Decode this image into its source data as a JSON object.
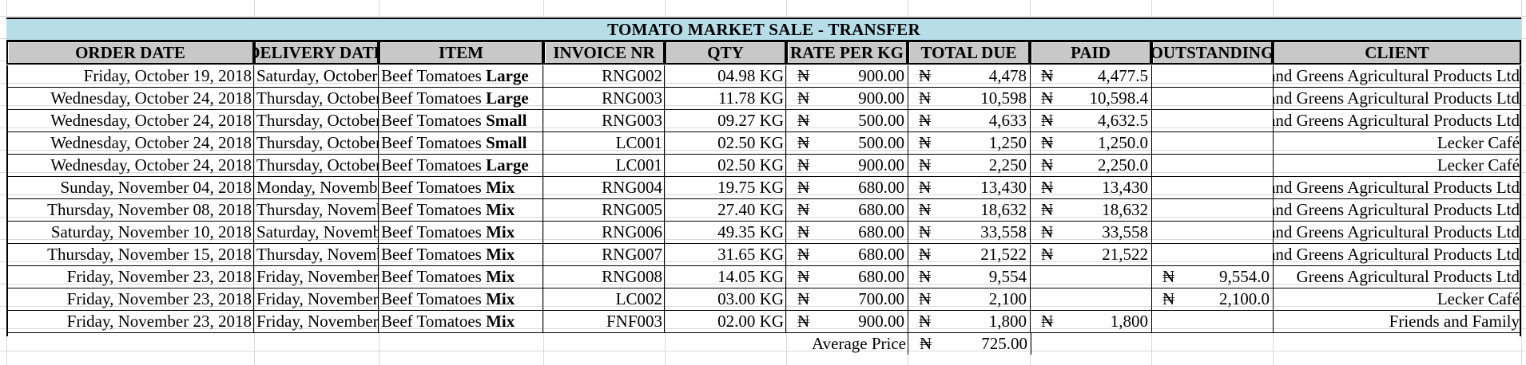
{
  "sheet": {
    "title": "TOMATO MARKET SALE - TRANSFER",
    "currency_symbol": "₦",
    "header_color": "#c8c8c8",
    "title_band_color": "#b7dde8",
    "columns": [
      "ORDER DATE",
      "DELIVERY DATE",
      "ITEM",
      "INVOICE NR",
      "QTY",
      "RATE PER KG",
      "TOTAL DUE",
      "PAID",
      "OUTSTANDING",
      "CLIENT"
    ],
    "rows": [
      {
        "order_date": "Friday, October 19, 2018",
        "delivery_date": "Saturday, October",
        "item": "Beef Tomatoes",
        "grade": "Large",
        "invoice": "RNG002",
        "qty": "04.98 KG",
        "rate": "900.00",
        "total": "4,478",
        "paid": "4,477.5",
        "outstanding": "",
        "client": "Reds and Greens Agricultural Products Ltd"
      },
      {
        "order_date": "Wednesday, October 24, 2018",
        "delivery_date": "Thursday, October",
        "item": "Beef Tomatoes",
        "grade": "Large",
        "invoice": "RNG003",
        "qty": "11.78 KG",
        "rate": "900.00",
        "total": "10,598",
        "paid": "10,598.4",
        "outstanding": "",
        "client": "Reds and Greens Agricultural Products Ltd"
      },
      {
        "order_date": "Wednesday, October 24, 2018",
        "delivery_date": "Thursday, October",
        "item": "Beef Tomatoes",
        "grade": "Small",
        "invoice": "RNG003",
        "qty": "09.27 KG",
        "rate": "500.00",
        "total": "4,633",
        "paid": "4,632.5",
        "outstanding": "",
        "client": "Reds and Greens Agricultural Products Ltd"
      },
      {
        "order_date": "Wednesday, October 24, 2018",
        "delivery_date": "Thursday, October",
        "item": "Beef Tomatoes",
        "grade": "Small",
        "invoice": "LC001",
        "qty": "02.50 KG",
        "rate": "500.00",
        "total": "1,250",
        "paid": "1,250.0",
        "outstanding": "",
        "client": "Lecker Café"
      },
      {
        "order_date": "Wednesday, October 24, 2018",
        "delivery_date": "Thursday, October",
        "item": "Beef Tomatoes",
        "grade": "Large",
        "invoice": "LC001",
        "qty": "02.50 KG",
        "rate": "900.00",
        "total": "2,250",
        "paid": "2,250.0",
        "outstanding": "",
        "client": "Lecker Café"
      },
      {
        "order_date": "Sunday, November 04, 2018",
        "delivery_date": "Monday, November",
        "item": "Beef Tomatoes",
        "grade": "Mix",
        "invoice": "RNG004",
        "qty": "19.75 KG",
        "rate": "680.00",
        "total": "13,430",
        "paid": "13,430",
        "outstanding": "",
        "client": "Reds and Greens Agricultural Products Ltd"
      },
      {
        "order_date": "Thursday, November 08, 2018",
        "delivery_date": "Thursday, November",
        "item": "Beef Tomatoes",
        "grade": "Mix",
        "invoice": "RNG005",
        "qty": "27.40 KG",
        "rate": "680.00",
        "total": "18,632",
        "paid": "18,632",
        "outstanding": "",
        "client": "Reds and Greens Agricultural Products Ltd"
      },
      {
        "order_date": "Saturday, November 10, 2018",
        "delivery_date": "Saturday, November",
        "item": "Beef Tomatoes",
        "grade": "Mix",
        "invoice": "RNG006",
        "qty": "49.35 KG",
        "rate": "680.00",
        "total": "33,558",
        "paid": "33,558",
        "outstanding": "",
        "client": "Reds and Greens Agricultural Products Ltd"
      },
      {
        "order_date": "Thursday, November 15, 2018",
        "delivery_date": "Thursday, November",
        "item": "Beef Tomatoes",
        "grade": "Mix",
        "invoice": "RNG007",
        "qty": "31.65 KG",
        "rate": "680.00",
        "total": "21,522",
        "paid": "21,522",
        "outstanding": "",
        "client": "Reds and Greens Agricultural Products Ltd"
      },
      {
        "order_date": "Friday, November 23, 2018",
        "delivery_date": "Friday, November",
        "item": "Beef Tomatoes",
        "grade": "Mix",
        "invoice": "RNG008",
        "qty": "14.05 KG",
        "rate": "680.00",
        "total": "9,554",
        "paid": "",
        "outstanding": "9,554.0",
        "client": "Greens Agricultural Products Ltd"
      },
      {
        "order_date": "Friday, November 23, 2018",
        "delivery_date": "Friday, November",
        "item": "Beef Tomatoes",
        "grade": "Mix",
        "invoice": "LC002",
        "qty": "03.00 KG",
        "rate": "700.00",
        "total": "2,100",
        "paid": "",
        "outstanding": "2,100.0",
        "client": "Lecker Café"
      },
      {
        "order_date": "Friday, November 23, 2018",
        "delivery_date": "Friday, November",
        "item": "Beef Tomatoes",
        "grade": "Mix",
        "invoice": "FNF003",
        "qty": "02.00 KG",
        "rate": "900.00",
        "total": "1,800",
        "paid": "1,800",
        "outstanding": "",
        "client": "Friends and Family"
      }
    ],
    "summary": {
      "label": "Average Price",
      "value": "725.00"
    }
  }
}
